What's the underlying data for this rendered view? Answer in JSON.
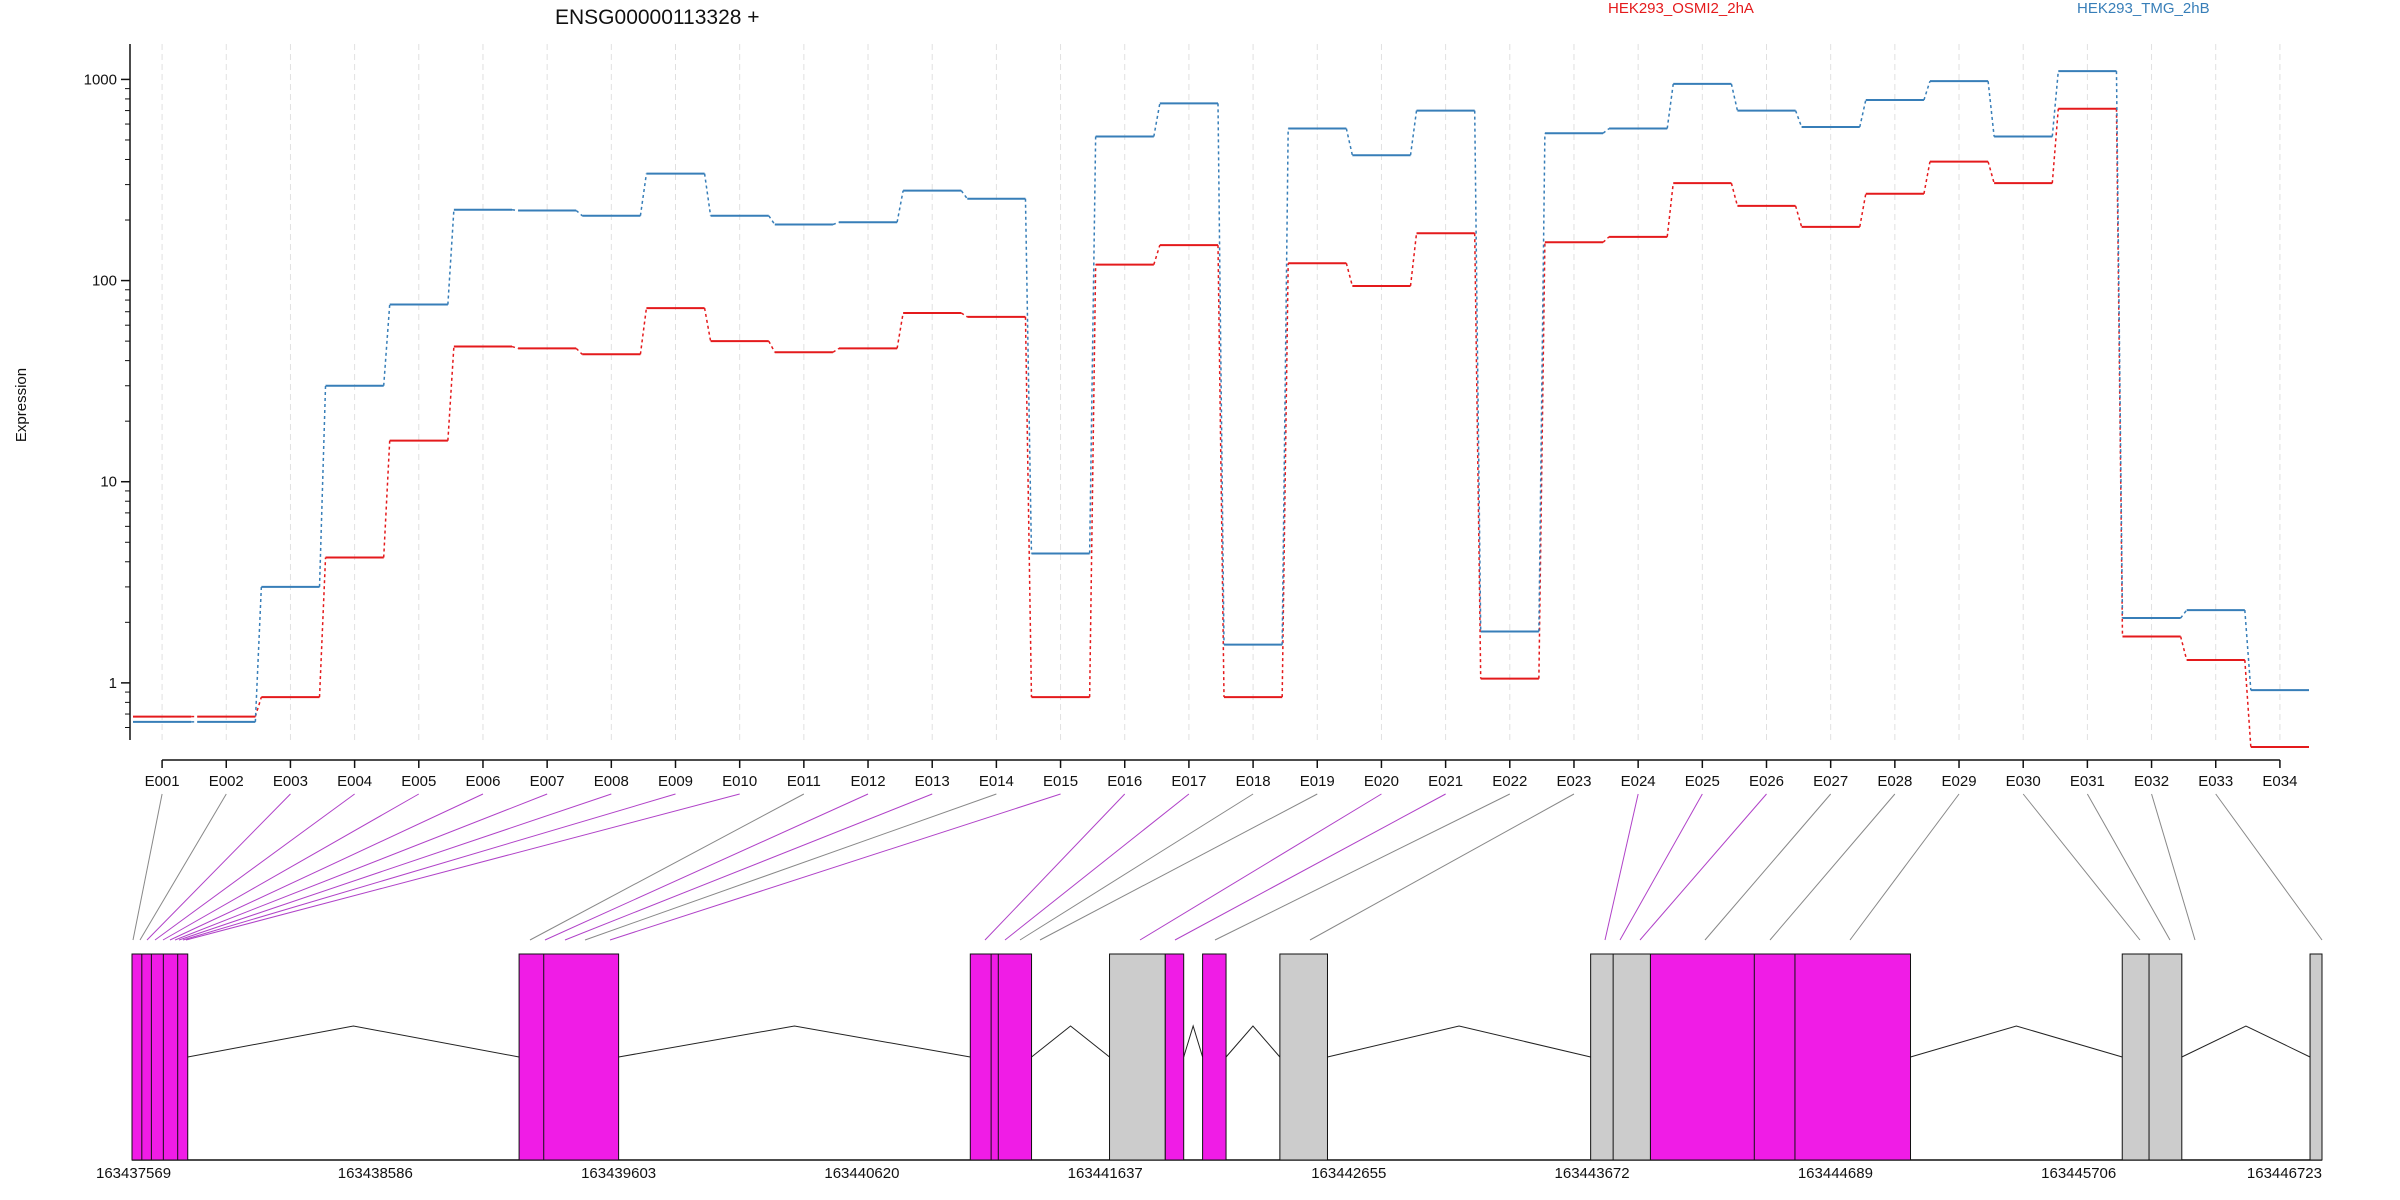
{
  "chart_data": {
    "type": "line",
    "title": "ENSG00000113328 +",
    "ylabel": "Expression",
    "xlabel": "",
    "y_scale": "log",
    "y_ticks": [
      1,
      10,
      100,
      1000
    ],
    "y_tick_labels": [
      "1",
      "10",
      "100",
      "1000"
    ],
    "ylim": [
      0.52,
      1500
    ],
    "grid": "vertical lines at each exon",
    "legend_placement": "top, right of title",
    "categories": [
      "E001",
      "E002",
      "E003",
      "E004",
      "E005",
      "E006",
      "E007",
      "E008",
      "E009",
      "E010",
      "E011",
      "E012",
      "E013",
      "E014",
      "E015",
      "E016",
      "E017",
      "E018",
      "E019",
      "E020",
      "E021",
      "E022",
      "E023",
      "E024",
      "E025",
      "E026",
      "E027",
      "E028",
      "E029",
      "E030",
      "E031",
      "E032",
      "E033",
      "E034"
    ],
    "series": [
      {
        "name": "HEK293_OSMI2_2hA",
        "color": "#e41a1c",
        "values": [
          0.68,
          0.68,
          0.85,
          4.2,
          16,
          47,
          46,
          43,
          73,
          50,
          44,
          46,
          69,
          66,
          0.85,
          120,
          150,
          0.85,
          122,
          94,
          172,
          1.05,
          155,
          165,
          305,
          235,
          185,
          270,
          390,
          305,
          715,
          1.7,
          1.3,
          0.48
        ]
      },
      {
        "name": "HEK293_TMG_2hB",
        "color": "#377eb8",
        "values": [
          0.64,
          0.64,
          3.0,
          30,
          76,
          225,
          223,
          210,
          340,
          210,
          190,
          195,
          280,
          255,
          4.4,
          520,
          760,
          1.55,
          570,
          420,
          700,
          1.8,
          540,
          570,
          950,
          700,
          580,
          790,
          980,
          520,
          1100,
          2.1,
          2.3,
          0.92
        ]
      }
    ],
    "gene_model": {
      "coordinate_ticks": [
        "163437569",
        "163438586",
        "163439603",
        "163440620",
        "163441637",
        "163442655",
        "163443672",
        "163444689",
        "163445706",
        "163446723"
      ],
      "gene_start": 163437569,
      "gene_end": 163446723,
      "exon_color": "#f01ce6",
      "intron_only_color": "#cccccc",
      "exons": [
        {
          "start": 163437569,
          "end": 163437802,
          "color": "#f01ce6"
        },
        {
          "start": 163439187,
          "end": 163439603,
          "color": "#f01ce6"
        },
        {
          "start": 163441073,
          "end": 163441329,
          "color": "#f01ce6"
        },
        {
          "start": 163441655,
          "end": 163441888,
          "color": "#cccccc"
        },
        {
          "start": 163441888,
          "end": 163441965,
          "color": "#f01ce6"
        },
        {
          "start": 163442044,
          "end": 163442142,
          "color": "#f01ce6"
        },
        {
          "start": 163442367,
          "end": 163442566,
          "color": "#cccccc"
        },
        {
          "start": 163443666,
          "end": 163443916,
          "color": "#cccccc"
        },
        {
          "start": 163443916,
          "end": 163445003,
          "color": "#f01ce6"
        },
        {
          "start": 163445888,
          "end": 163446137,
          "color": "#cccccc"
        },
        {
          "start": 163446673,
          "end": 163446723,
          "color": "#cccccc"
        }
      ]
    }
  }
}
